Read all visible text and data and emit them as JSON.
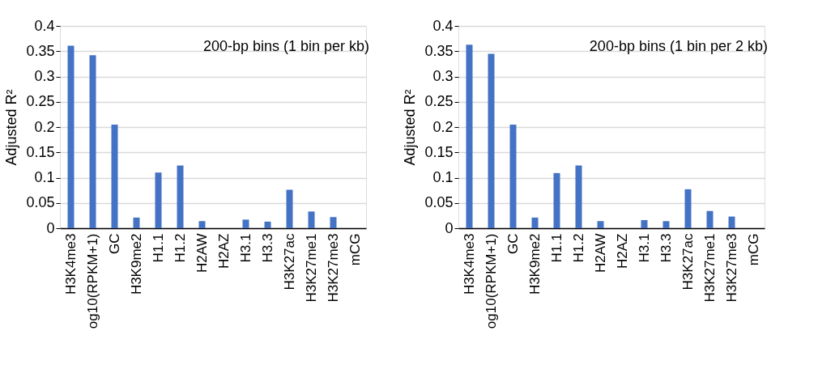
{
  "chart_data": [
    {
      "type": "bar",
      "ylabel": "Adjusted R²",
      "annotations": [
        "200-bp bins (1 bin per kb)"
      ],
      "categories": [
        "H3K4me3",
        "og10(RPKM+1)",
        "GC",
        "H3K9me2",
        "H1.1",
        "H1.2",
        "H2AW",
        "H2AZ",
        "H3.1",
        "H3.3",
        "H3K27ac",
        "H3K27me1",
        "H3K27me3",
        "mCG"
      ],
      "values": [
        0.361,
        0.342,
        0.205,
        0.021,
        0.11,
        0.124,
        0.014,
        0,
        0.017,
        0.013,
        0.076,
        0.033,
        0.022,
        0
      ],
      "color": "#4472c4",
      "ylim": [
        0,
        0.4
      ],
      "yticks": [
        0,
        0.05,
        0.1,
        0.15,
        0.2,
        0.25,
        0.3,
        0.35,
        0.4
      ],
      "grid": "y"
    },
    {
      "type": "bar",
      "ylabel": "Adjusted R²",
      "annotations": [
        "200-bp bins (1 bin per 2 kb)"
      ],
      "categories": [
        "H3K4me3",
        "og10(RPKM+1)",
        "GC",
        "H3K9me2",
        "H1.1",
        "H1.2",
        "H2AW",
        "H2AZ",
        "H3.1",
        "H3.3",
        "H3K27ac",
        "H3K27me1",
        "H3K27me3",
        "mCG"
      ],
      "values": [
        0.363,
        0.345,
        0.205,
        0.021,
        0.109,
        0.124,
        0.014,
        0,
        0.016,
        0.014,
        0.077,
        0.034,
        0.023,
        0
      ],
      "color": "#4472c4",
      "ylim": [
        0,
        0.4
      ],
      "yticks": [
        0,
        0.05,
        0.1,
        0.15,
        0.2,
        0.25,
        0.3,
        0.35,
        0.4
      ],
      "grid": "y"
    }
  ]
}
